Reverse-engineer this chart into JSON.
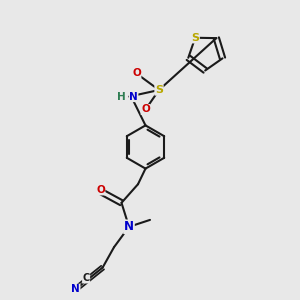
{
  "bg_color": "#e8e8e8",
  "bond_color": "#1a1a1a",
  "S_color": "#b8a800",
  "N_color": "#0000cc",
  "O_color": "#cc0000",
  "C_color": "#1a1a1a",
  "H_color": "#2e7d52",
  "lw": 1.5,
  "figsize": [
    3.0,
    3.0
  ],
  "dpi": 100,
  "xlim": [
    0,
    10
  ],
  "ylim": [
    0,
    10
  ]
}
